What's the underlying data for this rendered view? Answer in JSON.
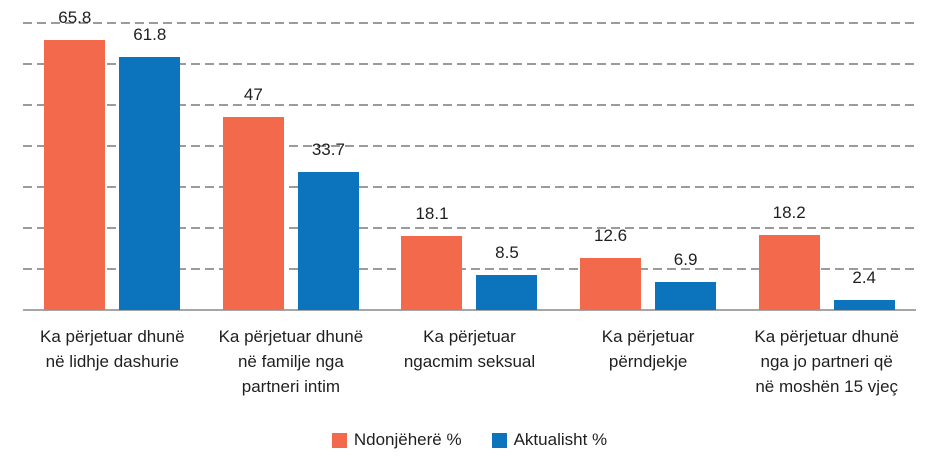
{
  "chart_data": {
    "type": "bar",
    "title": "",
    "xlabel": "",
    "ylabel": "",
    "categories": [
      "Ka përjetuar dhunë\nnë lidhje dashurie",
      "Ka përjetuar dhunë\nnë familje nga\npartneri intim",
      "Ka përjetuar\nngacmim seksual",
      "Ka përjetuar\npërndjekje",
      "Ka përjetuar dhunë\nnga jo partneri që\nnë moshën 15 vjeç"
    ],
    "series": [
      {
        "name": "Ndonjëherë %",
        "color": "#f2694c",
        "values": [
          65.8,
          47,
          18.1,
          12.6,
          18.2
        ]
      },
      {
        "name": "Aktualisht %",
        "color": "#0c74bc",
        "values": [
          61.8,
          33.7,
          8.5,
          6.9,
          2.4
        ]
      }
    ],
    "data_labels": [
      [
        "65.8",
        "47",
        "18.1",
        "12.6",
        "18.2"
      ],
      [
        "61.8",
        "33.7",
        "8.5",
        "6.9",
        "2.4"
      ]
    ],
    "ylim": [
      0,
      70
    ],
    "grid_step": 10,
    "grid": "dashed-horizontal",
    "y_tick_labels_visible": false,
    "legend_position": "bottom"
  },
  "colors": {
    "series_ndonjehere": "#f2694c",
    "series_aktualisht": "#0c74bc",
    "gridline": "#9b9b9b",
    "axis_line": "#a6a6a6",
    "text": "#1f1f1f",
    "background": "#ffffff"
  }
}
